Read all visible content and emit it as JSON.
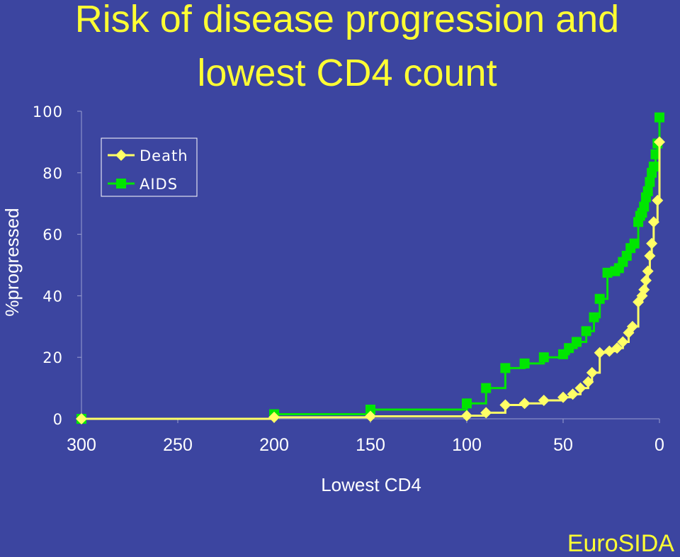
{
  "title": {
    "line1": "Risk of disease progression and",
    "line2": "lowest CD4 count"
  },
  "footer": "EuroSIDA",
  "colors": {
    "background": "#3c45a0",
    "title": "#ffff33",
    "death": "#ffff66",
    "aids": "#00e600"
  },
  "chart_data": {
    "type": "line",
    "title": "",
    "xlabel": "Lowest CD4",
    "ylabel": "%progressed",
    "xlim": [
      300,
      0
    ],
    "ylim": [
      0,
      100
    ],
    "x_ticks": [
      "300",
      "250",
      "200",
      "150",
      "100",
      "50",
      "0"
    ],
    "y_ticks": [
      "0",
      "20",
      "40",
      "60",
      "80",
      "100"
    ],
    "legend_position": "top-left",
    "series": [
      {
        "name": "Death",
        "marker": "diamond",
        "step": true,
        "points": [
          [
            300,
            0
          ],
          [
            200,
            0.5
          ],
          [
            150,
            0.8
          ],
          [
            100,
            1
          ],
          [
            90,
            2
          ],
          [
            80,
            4.5
          ],
          [
            70,
            5
          ],
          [
            60,
            6
          ],
          [
            50,
            7
          ],
          [
            45,
            8
          ],
          [
            41,
            10
          ],
          [
            37,
            12
          ],
          [
            35,
            15
          ],
          [
            31,
            21.5
          ],
          [
            26,
            22
          ],
          [
            22,
            23
          ],
          [
            19,
            25
          ],
          [
            16,
            28
          ],
          [
            14,
            30
          ],
          [
            11,
            38
          ],
          [
            9,
            40
          ],
          [
            8,
            42
          ],
          [
            7,
            45
          ],
          [
            6,
            48
          ],
          [
            5,
            53
          ],
          [
            4,
            57
          ],
          [
            3,
            64
          ],
          [
            1,
            71
          ],
          [
            0,
            90
          ]
        ]
      },
      {
        "name": "AIDS",
        "marker": "square",
        "step": true,
        "points": [
          [
            300,
            0
          ],
          [
            200,
            1.5
          ],
          [
            150,
            3
          ],
          [
            100,
            5
          ],
          [
            90,
            10
          ],
          [
            80,
            16.5
          ],
          [
            70,
            18
          ],
          [
            60,
            20
          ],
          [
            50,
            21
          ],
          [
            47,
            23
          ],
          [
            43,
            25
          ],
          [
            38,
            28.5
          ],
          [
            34,
            33
          ],
          [
            31,
            39
          ],
          [
            27,
            47.5
          ],
          [
            23,
            48
          ],
          [
            21,
            49
          ],
          [
            19,
            51
          ],
          [
            17,
            53
          ],
          [
            15,
            55.5
          ],
          [
            13,
            57
          ],
          [
            11,
            64
          ],
          [
            10,
            66
          ],
          [
            9,
            67
          ],
          [
            8,
            69
          ],
          [
            7,
            72
          ],
          [
            6,
            74
          ],
          [
            5,
            77
          ],
          [
            4,
            80
          ],
          [
            3,
            82
          ],
          [
            2,
            86
          ],
          [
            1,
            89.5
          ],
          [
            0,
            98
          ]
        ]
      }
    ]
  }
}
